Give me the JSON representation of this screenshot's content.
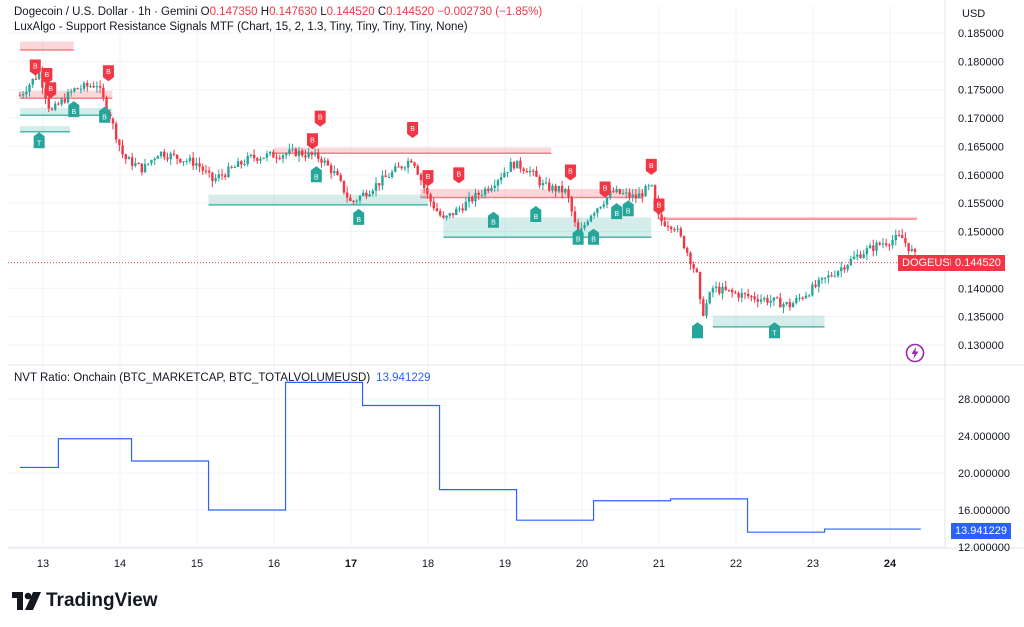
{
  "header": {
    "symbol": "Dogecoin / U.S. Dollar · 1h · Gemini",
    "o_label": "O",
    "o_value": "0.147350",
    "h_label": "H",
    "h_value": "0.147630",
    "l_label": "L",
    "l_value": "0.144520",
    "c_label": "C",
    "c_value": "0.144520",
    "change": "−0.002730 (−1.85%)",
    "indicator": "LuxAlgo - Support Resistance Signals MTF (Chart, 15, 2, 1.3, Tiny, Tiny, Tiny, Tiny, None)"
  },
  "currency": "USD",
  "symbol_tag": "DOGEUSD",
  "last_price": "0.144520",
  "indicator_panel": {
    "title": "NVT Ratio: Onchain (BTC_MARKETCAP, BTC_TOTALVOLUMEUSD)",
    "value": "13.941229"
  },
  "brand": "TradingView",
  "colors": {
    "up": "#26a69a",
    "down": "#f23645",
    "nvt": "#2962ff"
  },
  "chart_data": [
    {
      "type": "candlestick",
      "title": "Dogecoin / U.S. Dollar · 1h · Gemini",
      "x_ticks": [
        "13",
        "14",
        "15",
        "16",
        "17",
        "18",
        "19",
        "20",
        "21",
        "22",
        "23",
        "24"
      ],
      "y_ticks": [
        "0.185000",
        "0.180000",
        "0.175000",
        "0.170000",
        "0.165000",
        "0.160000",
        "0.155000",
        "0.150000",
        "0.145000",
        "0.140000",
        "0.135000",
        "0.130000"
      ],
      "ylim": [
        0.127,
        0.189
      ],
      "last": 0.14452,
      "price_path": [
        [
          12.7,
          0.174
        ],
        [
          12.95,
          0.178
        ],
        [
          13.1,
          0.171
        ],
        [
          13.4,
          0.175
        ],
        [
          13.7,
          0.176
        ],
        [
          13.85,
          0.171
        ],
        [
          14.05,
          0.163
        ],
        [
          14.3,
          0.161
        ],
        [
          14.5,
          0.164
        ],
        [
          15.0,
          0.162
        ],
        [
          15.2,
          0.159
        ],
        [
          15.7,
          0.163
        ],
        [
          16.3,
          0.164
        ],
        [
          16.6,
          0.163
        ],
        [
          16.8,
          0.16
        ],
        [
          17.0,
          0.155
        ],
        [
          17.3,
          0.158
        ],
        [
          17.8,
          0.163
        ],
        [
          18.0,
          0.156
        ],
        [
          18.2,
          0.152
        ],
        [
          18.5,
          0.155
        ],
        [
          18.8,
          0.158
        ],
        [
          19.1,
          0.162
        ],
        [
          19.3,
          0.161
        ],
        [
          19.5,
          0.158
        ],
        [
          19.8,
          0.157
        ],
        [
          19.95,
          0.149
        ],
        [
          20.1,
          0.153
        ],
        [
          20.4,
          0.157
        ],
        [
          20.7,
          0.156
        ],
        [
          20.9,
          0.158
        ],
        [
          21.0,
          0.152
        ],
        [
          21.2,
          0.151
        ],
        [
          21.35,
          0.147
        ],
        [
          21.5,
          0.142
        ],
        [
          21.55,
          0.135
        ],
        [
          21.7,
          0.14
        ],
        [
          22.0,
          0.139
        ],
        [
          22.4,
          0.138
        ],
        [
          22.7,
          0.137
        ],
        [
          23.0,
          0.14
        ],
        [
          23.3,
          0.143
        ],
        [
          23.6,
          0.146
        ],
        [
          23.9,
          0.148
        ],
        [
          24.15,
          0.149
        ],
        [
          24.35,
          0.1452
        ]
      ],
      "resistance_zones": [
        {
          "from": 12.7,
          "to": 13.4,
          "low": 0.182,
          "high": 0.1835
        },
        {
          "from": 12.7,
          "to": 13.9,
          "low": 0.1735,
          "high": 0.1748
        },
        {
          "from": 16.0,
          "to": 19.6,
          "low": 0.1638,
          "high": 0.1648
        },
        {
          "from": 17.9,
          "to": 20.8,
          "low": 0.156,
          "high": 0.1575
        },
        {
          "from": 21.0,
          "to": 24.35,
          "low": 0.1522,
          "high": 0.1526
        }
      ],
      "support_zones": [
        {
          "from": 12.7,
          "to": 13.35,
          "low": 0.1676,
          "high": 0.1686
        },
        {
          "from": 12.7,
          "to": 13.9,
          "low": 0.1705,
          "high": 0.1718
        },
        {
          "from": 15.15,
          "to": 18.0,
          "low": 0.1547,
          "high": 0.1565
        },
        {
          "from": 18.2,
          "to": 20.9,
          "low": 0.149,
          "high": 0.1525
        },
        {
          "from": 21.7,
          "to": 23.15,
          "low": 0.1332,
          "high": 0.1352
        }
      ],
      "signals": [
        {
          "x": 12.9,
          "p": 0.1775,
          "side": "sell",
          "text": "B"
        },
        {
          "x": 13.05,
          "p": 0.176,
          "side": "sell",
          "text": "B"
        },
        {
          "x": 13.1,
          "p": 0.1735,
          "side": "sell",
          "text": "B"
        },
        {
          "x": 13.4,
          "p": 0.173,
          "side": "buy",
          "text": "B"
        },
        {
          "x": 13.8,
          "p": 0.172,
          "side": "buy",
          "text": "B"
        },
        {
          "x": 13.85,
          "p": 0.1765,
          "side": "sell",
          "text": "B"
        },
        {
          "x": 12.95,
          "p": 0.1675,
          "side": "buy",
          "text": "T"
        },
        {
          "x": 16.5,
          "p": 0.1645,
          "side": "sell",
          "text": "B"
        },
        {
          "x": 16.6,
          "p": 0.1685,
          "side": "sell",
          "text": "B"
        },
        {
          "x": 16.55,
          "p": 0.1615,
          "side": "buy",
          "text": "B"
        },
        {
          "x": 17.1,
          "p": 0.154,
          "side": "buy",
          "text": "B"
        },
        {
          "x": 17.8,
          "p": 0.1665,
          "side": "sell",
          "text": "B"
        },
        {
          "x": 18.0,
          "p": 0.158,
          "side": "sell",
          "text": "B"
        },
        {
          "x": 18.4,
          "p": 0.1585,
          "side": "sell",
          "text": "B"
        },
        {
          "x": 18.85,
          "p": 0.1535,
          "side": "buy",
          "text": "B"
        },
        {
          "x": 19.4,
          "p": 0.1545,
          "side": "buy",
          "text": "B"
        },
        {
          "x": 19.85,
          "p": 0.159,
          "side": "sell",
          "text": "B"
        },
        {
          "x": 19.95,
          "p": 0.1505,
          "side": "buy",
          "text": "B"
        },
        {
          "x": 20.15,
          "p": 0.1505,
          "side": "buy",
          "text": "B"
        },
        {
          "x": 20.3,
          "p": 0.156,
          "side": "sell",
          "text": "B"
        },
        {
          "x": 20.45,
          "p": 0.155,
          "side": "buy",
          "text": "B"
        },
        {
          "x": 20.6,
          "p": 0.1555,
          "side": "buy",
          "text": "B"
        },
        {
          "x": 20.9,
          "p": 0.16,
          "side": "sell",
          "text": "B"
        },
        {
          "x": 21.0,
          "p": 0.153,
          "side": "sell",
          "text": "B"
        },
        {
          "x": 21.5,
          "p": 0.134,
          "side": "buy",
          "text": ""
        },
        {
          "x": 22.5,
          "p": 0.134,
          "side": "buy",
          "text": "T"
        }
      ]
    },
    {
      "type": "line",
      "title": "NVT Ratio: Onchain (BTC_MARKETCAP, BTC_TOTALVOLUMEUSD)",
      "y_ticks": [
        "28.000000",
        "24.000000",
        "20.000000",
        "16.000000",
        "12.000000"
      ],
      "ylim": [
        12.0,
        30.0
      ],
      "last": 13.941229,
      "series": [
        {
          "steps": [
            [
              12.7,
              20.6
            ],
            [
              13.2,
              23.7
            ],
            [
              14.15,
              21.3
            ],
            [
              15.15,
              16.0
            ],
            [
              16.15,
              29.8
            ],
            [
              17.15,
              27.3
            ],
            [
              18.15,
              18.2
            ],
            [
              19.15,
              14.9
            ],
            [
              20.15,
              17.0
            ],
            [
              21.15,
              17.2
            ],
            [
              22.15,
              13.6
            ],
            [
              23.15,
              13.94
            ],
            [
              24.4,
              13.94
            ]
          ]
        }
      ]
    }
  ]
}
